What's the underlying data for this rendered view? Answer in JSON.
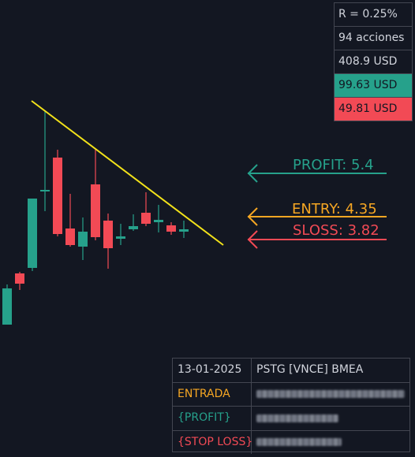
{
  "colors": {
    "background": "#131722",
    "bull": "#26a18b",
    "bear": "#f24a55",
    "trendline": "#f2e21a",
    "entry": "#f5a623"
  },
  "info_panel": {
    "risk": "R = 0.25%",
    "shares": "94 acciones",
    "position": "408.9 USD",
    "profit_usd": "99.63 USD",
    "loss_usd": "49.81 USD"
  },
  "levels": {
    "profit": "PROFIT: 5.4",
    "entry": "ENTRY: 4.35",
    "sloss": "SLOSS: 3.82"
  },
  "order_table": {
    "date": "13-01-2025",
    "symbol": "PSTG [VNCE] BMEA",
    "rows": [
      {
        "label": "ENTRADA",
        "value_hidden": true
      },
      {
        "label": "{PROFIT}",
        "value_hidden": true
      },
      {
        "label": "{STOP LOSS}",
        "value_hidden": true
      }
    ]
  }
}
